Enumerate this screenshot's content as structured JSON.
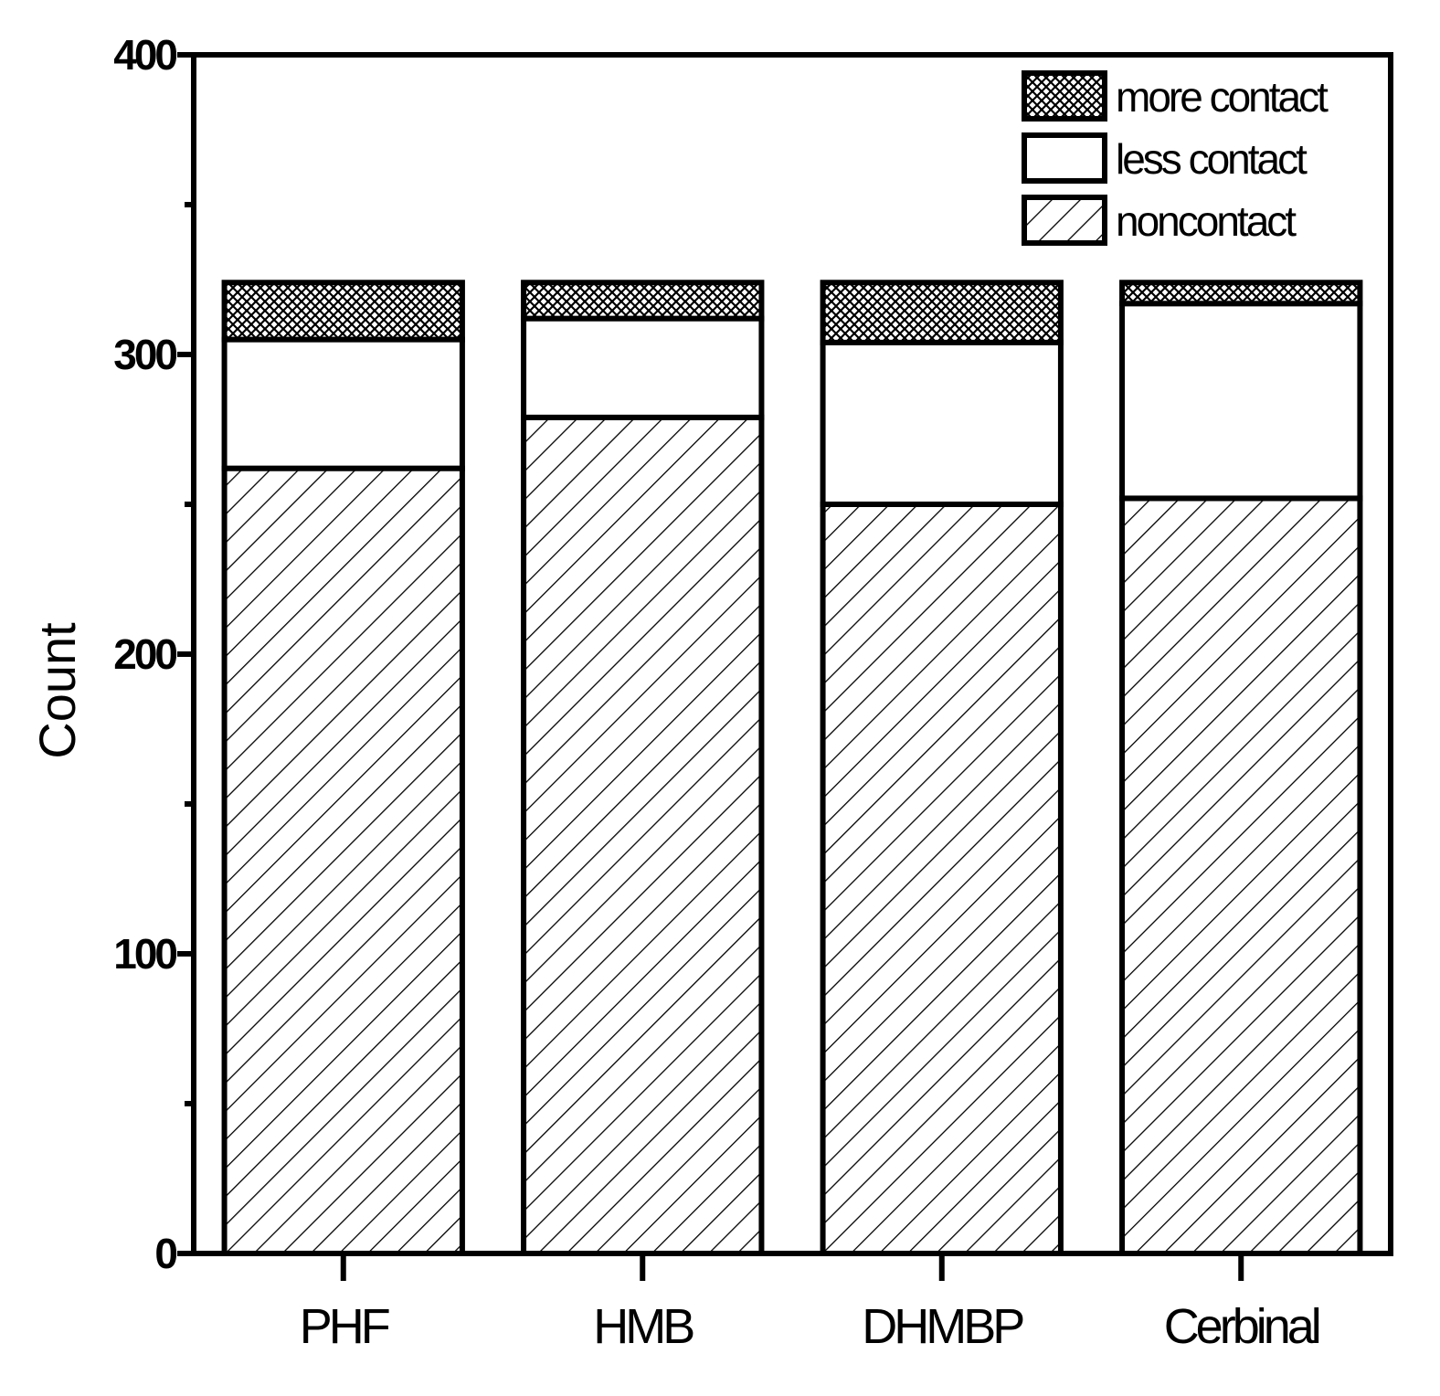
{
  "chart_data": {
    "type": "bar",
    "stacked": true,
    "categories": [
      "PHF",
      "HMB",
      "DHMBP",
      "Cerbinal"
    ],
    "series": [
      {
        "name": "noncontact",
        "pattern": "diagonal-hatch",
        "values": [
          262,
          279,
          250,
          252
        ]
      },
      {
        "name": "less contact",
        "pattern": "solid-white",
        "values": [
          43,
          33,
          54,
          65
        ]
      },
      {
        "name": "more contact",
        "pattern": "crosshatch",
        "values": [
          19,
          12,
          20,
          7
        ]
      }
    ],
    "xlabel": "",
    "ylabel": "Count",
    "ylim": [
      0,
      400
    ],
    "yticks": [
      0,
      100,
      200,
      300,
      400
    ],
    "ytick_labels": [
      "0",
      "100",
      "200",
      "300",
      "400"
    ],
    "minor_ticks": [
      50,
      150,
      250,
      350
    ],
    "legend_order": [
      "more contact",
      "less contact",
      "noncontact"
    ],
    "legend_position": "top-right",
    "grid": false,
    "colors": {
      "stroke": "#000000",
      "fill": "#ffffff"
    }
  }
}
